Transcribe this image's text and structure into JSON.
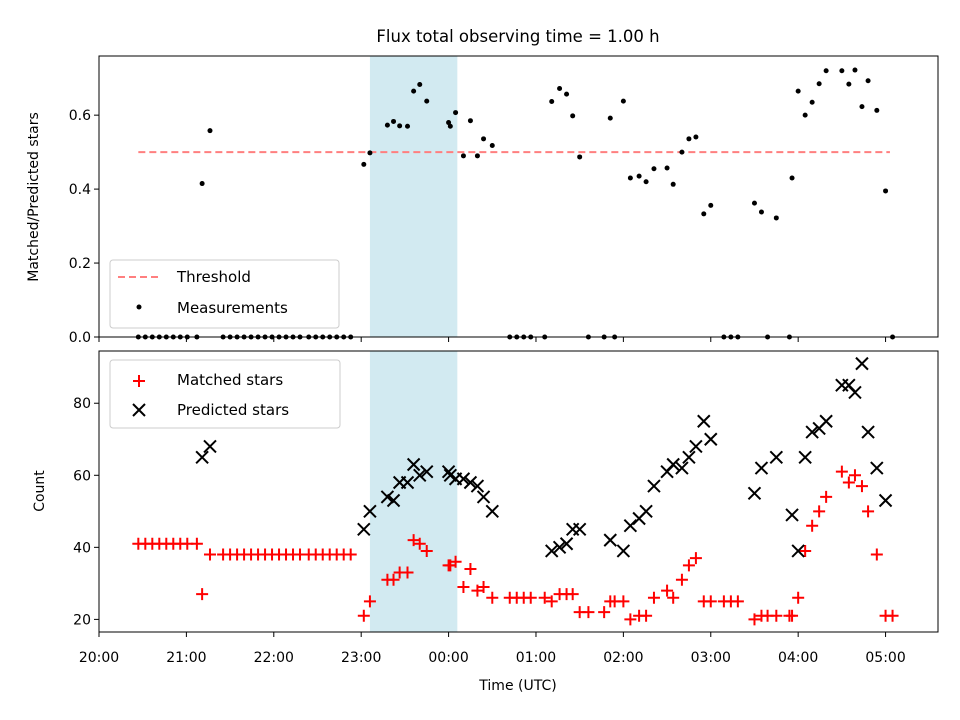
{
  "title": "Flux total observing time = 1.00 h",
  "colors": {
    "highlight": "#add8e6",
    "threshold": "#ff7f7f",
    "measurements": "#000000",
    "matched": "#ff0000",
    "predicted": "#000000"
  },
  "chart_data": [
    {
      "type": "scatter",
      "panel": "top",
      "xlabel": "",
      "ylabel": "Matched/Predicted stars",
      "xlim": [
        20.0,
        29.6
      ],
      "ylim": [
        0.0,
        0.76
      ],
      "yticks": [
        0.0,
        0.2,
        0.4,
        0.6
      ],
      "ytick_labels": [
        "0.0",
        "0.2",
        "0.4",
        "0.6"
      ],
      "shaded_span": [
        23.1,
        24.1
      ],
      "legend": {
        "position": "lower-left",
        "entries": [
          "Threshold",
          "Measurements"
        ]
      },
      "threshold": {
        "name": "Threshold",
        "value": 0.5,
        "x_range": [
          20.45,
          29.05
        ]
      },
      "series": [
        {
          "name": "Measurements",
          "marker": "dot",
          "points": [
            [
              20.45,
              0.0
            ],
            [
              20.53,
              0.0
            ],
            [
              20.61,
              0.0
            ],
            [
              20.69,
              0.0
            ],
            [
              20.77,
              0.0
            ],
            [
              20.85,
              0.0
            ],
            [
              20.93,
              0.0
            ],
            [
              21.01,
              0.0
            ],
            [
              21.12,
              0.0
            ],
            [
              21.18,
              0.415
            ],
            [
              21.27,
              0.558
            ],
            [
              21.42,
              0.0
            ],
            [
              21.5,
              0.0
            ],
            [
              21.58,
              0.0
            ],
            [
              21.66,
              0.0
            ],
            [
              21.74,
              0.0
            ],
            [
              21.82,
              0.0
            ],
            [
              21.9,
              0.0
            ],
            [
              21.98,
              0.0
            ],
            [
              22.06,
              0.0
            ],
            [
              22.14,
              0.0
            ],
            [
              22.22,
              0.0
            ],
            [
              22.3,
              0.0
            ],
            [
              22.4,
              0.0
            ],
            [
              22.48,
              0.0
            ],
            [
              22.56,
              0.0
            ],
            [
              22.64,
              0.0
            ],
            [
              22.72,
              0.0
            ],
            [
              22.8,
              0.0
            ],
            [
              22.88,
              0.0
            ],
            [
              23.03,
              0.467
            ],
            [
              23.1,
              0.498
            ],
            [
              23.3,
              0.573
            ],
            [
              23.37,
              0.583
            ],
            [
              23.44,
              0.571
            ],
            [
              23.53,
              0.57
            ],
            [
              23.6,
              0.665
            ],
            [
              23.67,
              0.683
            ],
            [
              23.75,
              0.638
            ],
            [
              24.0,
              0.58
            ],
            [
              24.02,
              0.57
            ],
            [
              24.08,
              0.607
            ],
            [
              24.17,
              0.49
            ],
            [
              24.25,
              0.585
            ],
            [
              24.33,
              0.49
            ],
            [
              24.4,
              0.536
            ],
            [
              24.5,
              0.518
            ],
            [
              24.7,
              0.0
            ],
            [
              24.78,
              0.0
            ],
            [
              24.86,
              0.0
            ],
            [
              24.94,
              0.0
            ],
            [
              25.1,
              0.0
            ],
            [
              25.18,
              0.637
            ],
            [
              25.27,
              0.672
            ],
            [
              25.35,
              0.657
            ],
            [
              25.42,
              0.598
            ],
            [
              25.5,
              0.487
            ],
            [
              25.6,
              0.0
            ],
            [
              25.78,
              0.0
            ],
            [
              25.85,
              0.592
            ],
            [
              25.9,
              0.0
            ],
            [
              26.0,
              0.638
            ],
            [
              26.08,
              0.43
            ],
            [
              26.18,
              0.435
            ],
            [
              26.26,
              0.42
            ],
            [
              26.35,
              0.455
            ],
            [
              26.5,
              0.457
            ],
            [
              26.57,
              0.413
            ],
            [
              26.67,
              0.5
            ],
            [
              26.75,
              0.536
            ],
            [
              26.83,
              0.541
            ],
            [
              26.92,
              0.333
            ],
            [
              27.0,
              0.356
            ],
            [
              27.15,
              0.0
            ],
            [
              27.23,
              0.0
            ],
            [
              27.31,
              0.0
            ],
            [
              27.5,
              0.362
            ],
            [
              27.58,
              0.338
            ],
            [
              27.65,
              0.0
            ],
            [
              27.75,
              0.322
            ],
            [
              27.9,
              0.0
            ],
            [
              27.93,
              0.43
            ],
            [
              28.0,
              0.665
            ],
            [
              28.08,
              0.6
            ],
            [
              28.16,
              0.635
            ],
            [
              28.24,
              0.685
            ],
            [
              28.32,
              0.72
            ],
            [
              28.5,
              0.72
            ],
            [
              28.58,
              0.684
            ],
            [
              28.65,
              0.722
            ],
            [
              28.73,
              0.623
            ],
            [
              28.8,
              0.693
            ],
            [
              28.9,
              0.613
            ],
            [
              29.0,
              0.395
            ],
            [
              29.08,
              0.0
            ]
          ]
        }
      ]
    },
    {
      "type": "scatter",
      "panel": "bottom",
      "xlabel": "Time (UTC)",
      "ylabel": "Count",
      "xlim": [
        20.0,
        29.6
      ],
      "ylim": [
        16.5,
        94.5
      ],
      "xticks": [
        20,
        21,
        22,
        23,
        24,
        25,
        26,
        27,
        28,
        29
      ],
      "xtick_labels": [
        "20:00",
        "21:00",
        "22:00",
        "23:00",
        "00:00",
        "01:00",
        "02:00",
        "03:00",
        "04:00",
        "05:00"
      ],
      "yticks": [
        20,
        40,
        60,
        80
      ],
      "ytick_labels": [
        "20",
        "40",
        "60",
        "80"
      ],
      "shaded_span": [
        23.1,
        24.1
      ],
      "legend": {
        "position": "top-left",
        "entries": [
          "Matched stars",
          "Predicted stars"
        ]
      },
      "series": [
        {
          "name": "Matched stars",
          "marker": "plus",
          "points": [
            [
              20.45,
              41
            ],
            [
              20.53,
              41
            ],
            [
              20.61,
              41
            ],
            [
              20.69,
              41
            ],
            [
              20.77,
              41
            ],
            [
              20.85,
              41
            ],
            [
              20.93,
              41
            ],
            [
              21.01,
              41
            ],
            [
              21.12,
              41
            ],
            [
              21.18,
              27
            ],
            [
              21.27,
              38
            ],
            [
              21.42,
              38
            ],
            [
              21.5,
              38
            ],
            [
              21.58,
              38
            ],
            [
              21.66,
              38
            ],
            [
              21.74,
              38
            ],
            [
              21.82,
              38
            ],
            [
              21.9,
              38
            ],
            [
              21.98,
              38
            ],
            [
              22.06,
              38
            ],
            [
              22.14,
              38
            ],
            [
              22.22,
              38
            ],
            [
              22.3,
              38
            ],
            [
              22.4,
              38
            ],
            [
              22.48,
              38
            ],
            [
              22.56,
              38
            ],
            [
              22.64,
              38
            ],
            [
              22.72,
              38
            ],
            [
              22.8,
              38
            ],
            [
              22.88,
              38
            ],
            [
              23.03,
              21
            ],
            [
              23.1,
              25
            ],
            [
              23.3,
              31
            ],
            [
              23.37,
              31
            ],
            [
              23.44,
              33
            ],
            [
              23.53,
              33
            ],
            [
              23.6,
              42
            ],
            [
              23.67,
              41
            ],
            [
              23.75,
              39
            ],
            [
              24.0,
              35
            ],
            [
              24.02,
              35
            ],
            [
              24.08,
              36
            ],
            [
              24.17,
              29
            ],
            [
              24.25,
              34
            ],
            [
              24.33,
              28
            ],
            [
              24.4,
              29
            ],
            [
              24.5,
              26
            ],
            [
              24.7,
              26
            ],
            [
              24.78,
              26
            ],
            [
              24.86,
              26
            ],
            [
              24.94,
              26
            ],
            [
              25.1,
              26
            ],
            [
              25.18,
              25
            ],
            [
              25.27,
              27
            ],
            [
              25.35,
              27
            ],
            [
              25.42,
              27
            ],
            [
              25.5,
              22
            ],
            [
              25.6,
              22
            ],
            [
              25.78,
              22
            ],
            [
              25.85,
              25
            ],
            [
              25.9,
              25
            ],
            [
              26.0,
              25
            ],
            [
              26.08,
              20
            ],
            [
              26.18,
              21
            ],
            [
              26.26,
              21
            ],
            [
              26.35,
              26
            ],
            [
              26.5,
              28
            ],
            [
              26.57,
              26
            ],
            [
              26.67,
              31
            ],
            [
              26.75,
              35
            ],
            [
              26.83,
              37
            ],
            [
              26.92,
              25
            ],
            [
              27.0,
              25
            ],
            [
              27.15,
              25
            ],
            [
              27.23,
              25
            ],
            [
              27.31,
              25
            ],
            [
              27.5,
              20
            ],
            [
              27.58,
              21
            ],
            [
              27.65,
              21
            ],
            [
              27.75,
              21
            ],
            [
              27.9,
              21
            ],
            [
              27.93,
              21
            ],
            [
              28.0,
              26
            ],
            [
              28.08,
              39
            ],
            [
              28.16,
              46
            ],
            [
              28.24,
              50
            ],
            [
              28.32,
              54
            ],
            [
              28.5,
              61
            ],
            [
              28.58,
              58
            ],
            [
              28.65,
              60
            ],
            [
              28.73,
              57
            ],
            [
              28.8,
              50
            ],
            [
              28.9,
              38
            ],
            [
              29.0,
              21
            ],
            [
              29.08,
              21
            ]
          ]
        },
        {
          "name": "Predicted stars",
          "marker": "x",
          "points": [
            [
              21.18,
              65
            ],
            [
              21.27,
              68
            ],
            [
              23.03,
              45
            ],
            [
              23.1,
              50
            ],
            [
              23.3,
              54
            ],
            [
              23.37,
              53
            ],
            [
              23.44,
              58
            ],
            [
              23.53,
              58
            ],
            [
              23.6,
              63
            ],
            [
              23.67,
              60
            ],
            [
              23.75,
              61
            ],
            [
              24.0,
              61
            ],
            [
              24.02,
              60
            ],
            [
              24.08,
              59
            ],
            [
              24.17,
              59
            ],
            [
              24.25,
              58
            ],
            [
              24.33,
              57
            ],
            [
              24.4,
              54
            ],
            [
              24.5,
              50
            ],
            [
              25.18,
              39
            ],
            [
              25.27,
              40
            ],
            [
              25.35,
              41
            ],
            [
              25.42,
              45
            ],
            [
              25.5,
              45
            ],
            [
              25.85,
              42
            ],
            [
              26.0,
              39
            ],
            [
              26.08,
              46
            ],
            [
              26.18,
              48
            ],
            [
              26.26,
              50
            ],
            [
              26.35,
              57
            ],
            [
              26.5,
              61
            ],
            [
              26.57,
              63
            ],
            [
              26.67,
              62
            ],
            [
              26.75,
              65
            ],
            [
              26.83,
              68
            ],
            [
              26.92,
              75
            ],
            [
              27.0,
              70
            ],
            [
              27.5,
              55
            ],
            [
              27.58,
              62
            ],
            [
              27.75,
              65
            ],
            [
              27.93,
              49
            ],
            [
              28.0,
              39
            ],
            [
              28.08,
              65
            ],
            [
              28.16,
              72
            ],
            [
              28.24,
              73
            ],
            [
              28.32,
              75
            ],
            [
              28.5,
              85
            ],
            [
              28.58,
              85
            ],
            [
              28.65,
              83
            ],
            [
              28.73,
              91
            ],
            [
              28.8,
              72
            ],
            [
              28.9,
              62
            ],
            [
              29.0,
              53
            ]
          ]
        }
      ]
    }
  ]
}
